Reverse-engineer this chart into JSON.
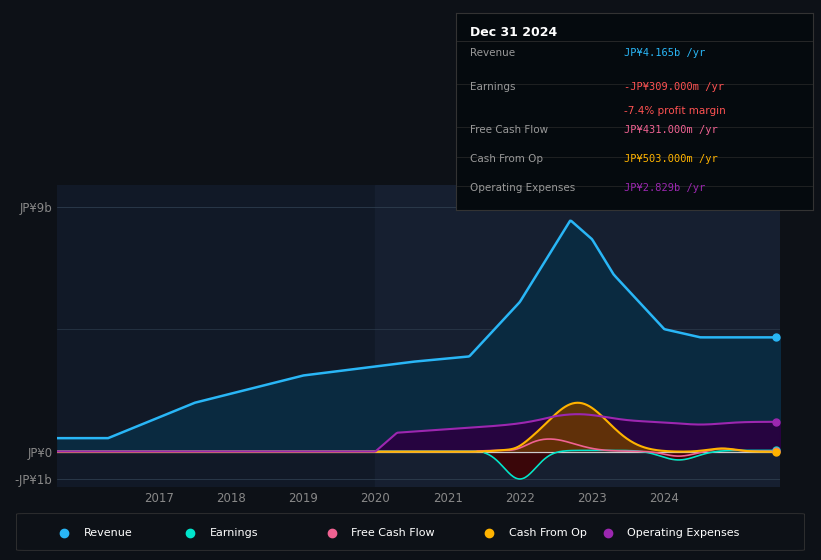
{
  "bg_color": "#0d1117",
  "plot_bg": "#111927",
  "shade_2020_color": "#161f30",
  "xlim_start": 2015.6,
  "xlim_end": 2025.6,
  "ylim": [
    -1300000000.0,
    9800000000.0
  ],
  "xticks": [
    2017,
    2018,
    2019,
    2020,
    2021,
    2022,
    2023,
    2024
  ],
  "ytick_vals": [
    -1000000000.0,
    0,
    9000000000.0
  ],
  "ytick_labels": [
    "-JP¥1b",
    "JP¥0",
    "JP¥9b"
  ],
  "colors": {
    "revenue": "#29b6f6",
    "revenue_fill": "#0a2a40",
    "earnings": "#00e5cc",
    "earnings_fill": "#002a22",
    "fcf": "#f06292",
    "fcf_fill": "#3a0020",
    "cashfromop": "#ffb300",
    "cashfromop_fill": "#6b3800",
    "opex": "#9c27b0",
    "opex_fill": "#2a0040"
  },
  "legend_items": [
    {
      "label": "Revenue",
      "color": "#29b6f6"
    },
    {
      "label": "Earnings",
      "color": "#00e5cc"
    },
    {
      "label": "Free Cash Flow",
      "color": "#f06292"
    },
    {
      "label": "Cash From Op",
      "color": "#ffb300"
    },
    {
      "label": "Operating Expenses",
      "color": "#9c27b0"
    }
  ],
  "info_box": {
    "title": "Dec 31 2024",
    "rows": [
      {
        "label": "Revenue",
        "value": "JP¥4.165b /yr",
        "color": "#29b6f6"
      },
      {
        "label": "Earnings",
        "value": "-JP¥309.000m /yr",
        "color": "#ff5252",
        "sub": "-7.4% profit margin",
        "sub_color": "#ff5252"
      },
      {
        "label": "Free Cash Flow",
        "value": "JP¥431.000m /yr",
        "color": "#f06292"
      },
      {
        "label": "Cash From Op",
        "value": "JP¥503.000m /yr",
        "color": "#ffb300"
      },
      {
        "label": "Operating Expenses",
        "value": "JP¥2.829b /yr",
        "color": "#9c27b0"
      }
    ]
  }
}
